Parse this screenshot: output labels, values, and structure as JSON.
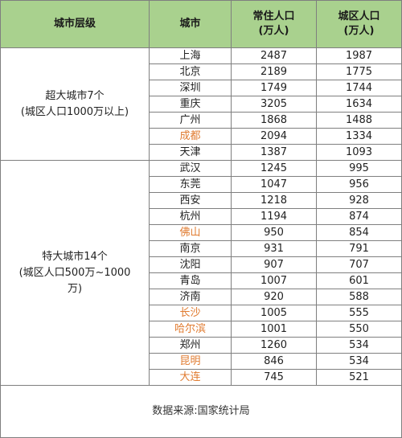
{
  "headers": {
    "tier": "城市层级",
    "city": "城市",
    "resident_line1": "常住人口",
    "resident_line2": "(万人)",
    "urban_line1": "城区人口",
    "urban_line2": "(万人)"
  },
  "tiers": [
    {
      "line1": "超大城市7个",
      "line2": "(城区人口1000万以上)",
      "line3": "",
      "rows": [
        {
          "city": "上海",
          "resident": "2487",
          "urban": "1987",
          "highlight": false
        },
        {
          "city": "北京",
          "resident": "2189",
          "urban": "1775",
          "highlight": false
        },
        {
          "city": "深圳",
          "resident": "1749",
          "urban": "1744",
          "highlight": false
        },
        {
          "city": "重庆",
          "resident": "3205",
          "urban": "1634",
          "highlight": false
        },
        {
          "city": "广州",
          "resident": "1868",
          "urban": "1488",
          "highlight": false
        },
        {
          "city": "成都",
          "resident": "2094",
          "urban": "1334",
          "highlight": true
        },
        {
          "city": "天津",
          "resident": "1387",
          "urban": "1093",
          "highlight": false
        }
      ]
    },
    {
      "line1": "特大城市14个",
      "line2": "(城区人口500万~1000",
      "line3": "万)",
      "rows": [
        {
          "city": "武汉",
          "resident": "1245",
          "urban": "995",
          "highlight": false
        },
        {
          "city": "东莞",
          "resident": "1047",
          "urban": "956",
          "highlight": false
        },
        {
          "city": "西安",
          "resident": "1218",
          "urban": "928",
          "highlight": false
        },
        {
          "city": "杭州",
          "resident": "1194",
          "urban": "874",
          "highlight": false
        },
        {
          "city": "佛山",
          "resident": "950",
          "urban": "854",
          "highlight": true
        },
        {
          "city": "南京",
          "resident": "931",
          "urban": "791",
          "highlight": false
        },
        {
          "city": "沈阳",
          "resident": "907",
          "urban": "707",
          "highlight": false
        },
        {
          "city": "青岛",
          "resident": "1007",
          "urban": "601",
          "highlight": false
        },
        {
          "city": "济南",
          "resident": "920",
          "urban": "588",
          "highlight": false
        },
        {
          "city": "长沙",
          "resident": "1005",
          "urban": "555",
          "highlight": true
        },
        {
          "city": "哈尔滨",
          "resident": "1001",
          "urban": "550",
          "highlight": true
        },
        {
          "city": "郑州",
          "resident": "1260",
          "urban": "534",
          "highlight": false
        },
        {
          "city": "昆明",
          "resident": "846",
          "urban": "534",
          "highlight": true
        },
        {
          "city": "大连",
          "resident": "745",
          "urban": "521",
          "highlight": true
        }
      ]
    }
  ],
  "footer": "数据来源:国家统计局",
  "colors": {
    "header_bg": "#a9d18e",
    "highlight_text": "#e07b30",
    "border": "#7f7f7f"
  }
}
